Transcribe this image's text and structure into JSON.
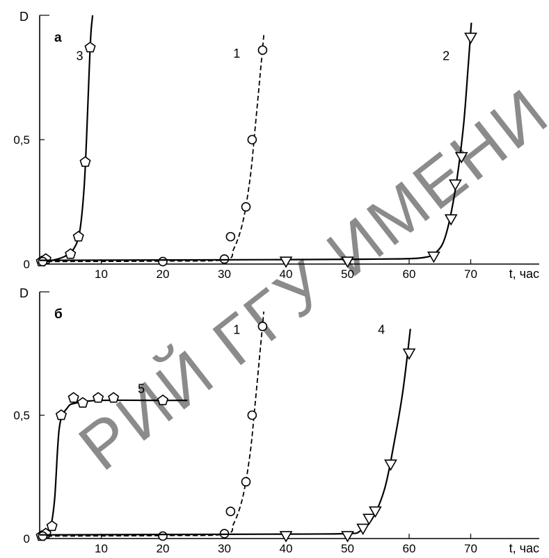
{
  "watermark": "РИЙ ГГУ ИМЕНИ Ф. С",
  "chart_data": [
    {
      "type": "line",
      "panel_label": "а",
      "ylabel": "D",
      "xlabel": "t, час",
      "xlim": [
        0,
        75
      ],
      "ylim": [
        0,
        1.0
      ],
      "x_ticks": [
        10,
        20,
        30,
        40,
        50,
        60,
        70
      ],
      "y_ticks": [
        {
          "value": 0,
          "label": "0"
        },
        {
          "value": 0.5,
          "label": "0,5"
        }
      ],
      "series": [
        {
          "name": "3",
          "marker": "pentagon",
          "dash": false,
          "markers": [
            [
              0.3,
              0.01
            ],
            [
              1,
              0.02
            ],
            [
              5,
              0.04
            ],
            [
              6.3,
              0.11
            ],
            [
              7.4,
              0.41
            ],
            [
              8.2,
              0.87
            ]
          ],
          "curve": [
            [
              0,
              0.01
            ],
            [
              2,
              0.015
            ],
            [
              4,
              0.03
            ],
            [
              5.5,
              0.06
            ],
            [
              6.5,
              0.13
            ],
            [
              7.2,
              0.3
            ],
            [
              7.6,
              0.5
            ],
            [
              8.0,
              0.75
            ],
            [
              8.3,
              0.92
            ],
            [
              8.6,
              1.0
            ]
          ]
        },
        {
          "name": "1",
          "marker": "circle",
          "dash": true,
          "markers": [
            [
              0.5,
              0.01
            ],
            [
              20,
              0.01
            ],
            [
              30,
              0.02
            ],
            [
              31,
              0.11
            ],
            [
              33.5,
              0.23
            ],
            [
              34.5,
              0.5
            ],
            [
              36.2,
              0.86
            ]
          ],
          "curve": [
            [
              0,
              0.01
            ],
            [
              20,
              0.012
            ],
            [
              30,
              0.018
            ],
            [
              31.5,
              0.06
            ],
            [
              33,
              0.17
            ],
            [
              34.2,
              0.35
            ],
            [
              35,
              0.55
            ],
            [
              35.8,
              0.76
            ],
            [
              36.4,
              0.92
            ]
          ]
        },
        {
          "name": "2",
          "marker": "triangle-down",
          "dash": false,
          "markers": [
            [
              40,
              0.01
            ],
            [
              50,
              0.01
            ],
            [
              64,
              0.03
            ],
            [
              66.8,
              0.18
            ],
            [
              67.5,
              0.32
            ],
            [
              68.5,
              0.43
            ],
            [
              70,
              0.91
            ]
          ],
          "curve": [
            [
              0,
              0.015
            ],
            [
              40,
              0.018
            ],
            [
              55,
              0.02
            ],
            [
              62,
              0.025
            ],
            [
              64.5,
              0.05
            ],
            [
              66,
              0.12
            ],
            [
              67.5,
              0.3
            ],
            [
              68.8,
              0.55
            ],
            [
              69.6,
              0.8
            ],
            [
              70.1,
              0.97
            ]
          ]
        }
      ],
      "curve_labels": [
        {
          "text": "3",
          "x": 6.5,
          "y": 0.82
        },
        {
          "text": "1",
          "x": 32.0,
          "y": 0.83
        },
        {
          "text": "2",
          "x": 66.0,
          "y": 0.82
        }
      ]
    },
    {
      "type": "line",
      "panel_label": "б",
      "ylabel": "D",
      "xlabel": "t, час",
      "xlim": [
        0,
        75
      ],
      "ylim": [
        0,
        1.0
      ],
      "x_ticks": [
        10,
        20,
        30,
        40,
        50,
        60,
        70
      ],
      "y_ticks": [
        {
          "value": 0,
          "label": "0"
        },
        {
          "value": 0.5,
          "label": "0,5"
        }
      ],
      "series": [
        {
          "name": "5",
          "marker": "pentagon",
          "dash": false,
          "markers": [
            [
              0.3,
              0.01
            ],
            [
              1,
              0.02
            ],
            [
              2,
              0.05
            ],
            [
              3.5,
              0.5
            ],
            [
              5.5,
              0.57
            ],
            [
              7,
              0.55
            ],
            [
              9.5,
              0.57
            ],
            [
              12,
              0.57
            ],
            [
              20,
              0.56
            ]
          ],
          "curve": [
            [
              0,
              0.01
            ],
            [
              1.5,
              0.03
            ],
            [
              2.4,
              0.15
            ],
            [
              3.2,
              0.45
            ],
            [
              4.5,
              0.53
            ],
            [
              6,
              0.55
            ],
            [
              10,
              0.56
            ],
            [
              20,
              0.56
            ],
            [
              24,
              0.56
            ]
          ]
        },
        {
          "name": "1",
          "marker": "circle",
          "dash": true,
          "markers": [
            [
              0.5,
              0.01
            ],
            [
              20,
              0.01
            ],
            [
              30,
              0.02
            ],
            [
              31,
              0.11
            ],
            [
              33.5,
              0.23
            ],
            [
              34.5,
              0.5
            ],
            [
              36.2,
              0.86
            ]
          ],
          "curve": [
            [
              0,
              0.01
            ],
            [
              20,
              0.012
            ],
            [
              30,
              0.018
            ],
            [
              31.5,
              0.06
            ],
            [
              33,
              0.17
            ],
            [
              34.2,
              0.35
            ],
            [
              35,
              0.55
            ],
            [
              35.8,
              0.76
            ],
            [
              36.4,
              0.92
            ]
          ]
        },
        {
          "name": "4",
          "marker": "triangle-down",
          "dash": false,
          "markers": [
            [
              40,
              0.01
            ],
            [
              50,
              0.01
            ],
            [
              52.5,
              0.04
            ],
            [
              53.5,
              0.08
            ],
            [
              54.5,
              0.11
            ],
            [
              57,
              0.3
            ],
            [
              60,
              0.75
            ]
          ],
          "curve": [
            [
              0,
              0.015
            ],
            [
              40,
              0.018
            ],
            [
              50,
              0.02
            ],
            [
              52,
              0.03
            ],
            [
              54,
              0.08
            ],
            [
              56,
              0.2
            ],
            [
              57.5,
              0.38
            ],
            [
              59,
              0.6
            ],
            [
              60.2,
              0.85
            ]
          ]
        }
      ],
      "curve_labels": [
        {
          "text": "5",
          "x": 16.5,
          "y": 0.59
        },
        {
          "text": "1",
          "x": 32.0,
          "y": 0.83
        },
        {
          "text": "4",
          "x": 55.5,
          "y": 0.83
        }
      ]
    }
  ]
}
